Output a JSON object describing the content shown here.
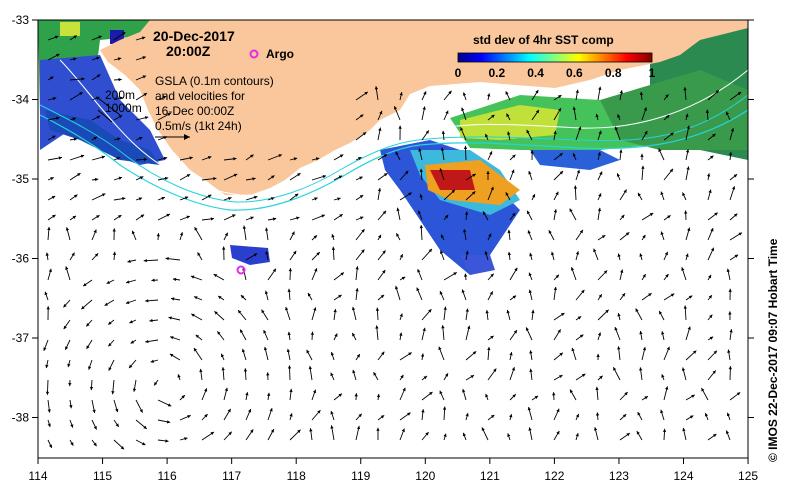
{
  "map": {
    "date": "20-Dec-2017",
    "time": "20:00Z",
    "argo_label": "Argo",
    "gsla_lines": [
      "GSLA (0.1m contours)",
      "and velocities for",
      "16-Dec 00:00Z",
      "0.5m/s (1kt 24h)"
    ],
    "bathy_labels": [
      "200m",
      "1000m"
    ],
    "colorbar": {
      "title": "std dev of 4hr SST comp",
      "ticks": [
        "0",
        "0.2",
        "0.4",
        "0.6",
        "0.8",
        "1"
      ]
    },
    "credit": "© IMOS 22-Dec-2017 09:07 Hobart Time",
    "x_ticks": [
      "114",
      "115",
      "116",
      "117",
      "118",
      "119",
      "120",
      "121",
      "122",
      "123",
      "124",
      "125"
    ],
    "y_ticks": [
      "-33",
      "-34",
      "-35",
      "-36",
      "-37",
      "-38"
    ],
    "colors": {
      "land": "#f9c79b",
      "ocean": "#ffffff",
      "contour_200m": "#ffffff",
      "contour_1000m": "#25d4dc",
      "argo_marker": "#e62be6"
    }
  },
  "chart_data": {
    "type": "map",
    "x_range": [
      114,
      125
    ],
    "y_range": [
      -38.5,
      -33
    ],
    "argo_floats": [
      {
        "lon": 117.3,
        "lat": -33.45
      },
      {
        "lon": 117.1,
        "lat": -36.1
      }
    ]
  }
}
